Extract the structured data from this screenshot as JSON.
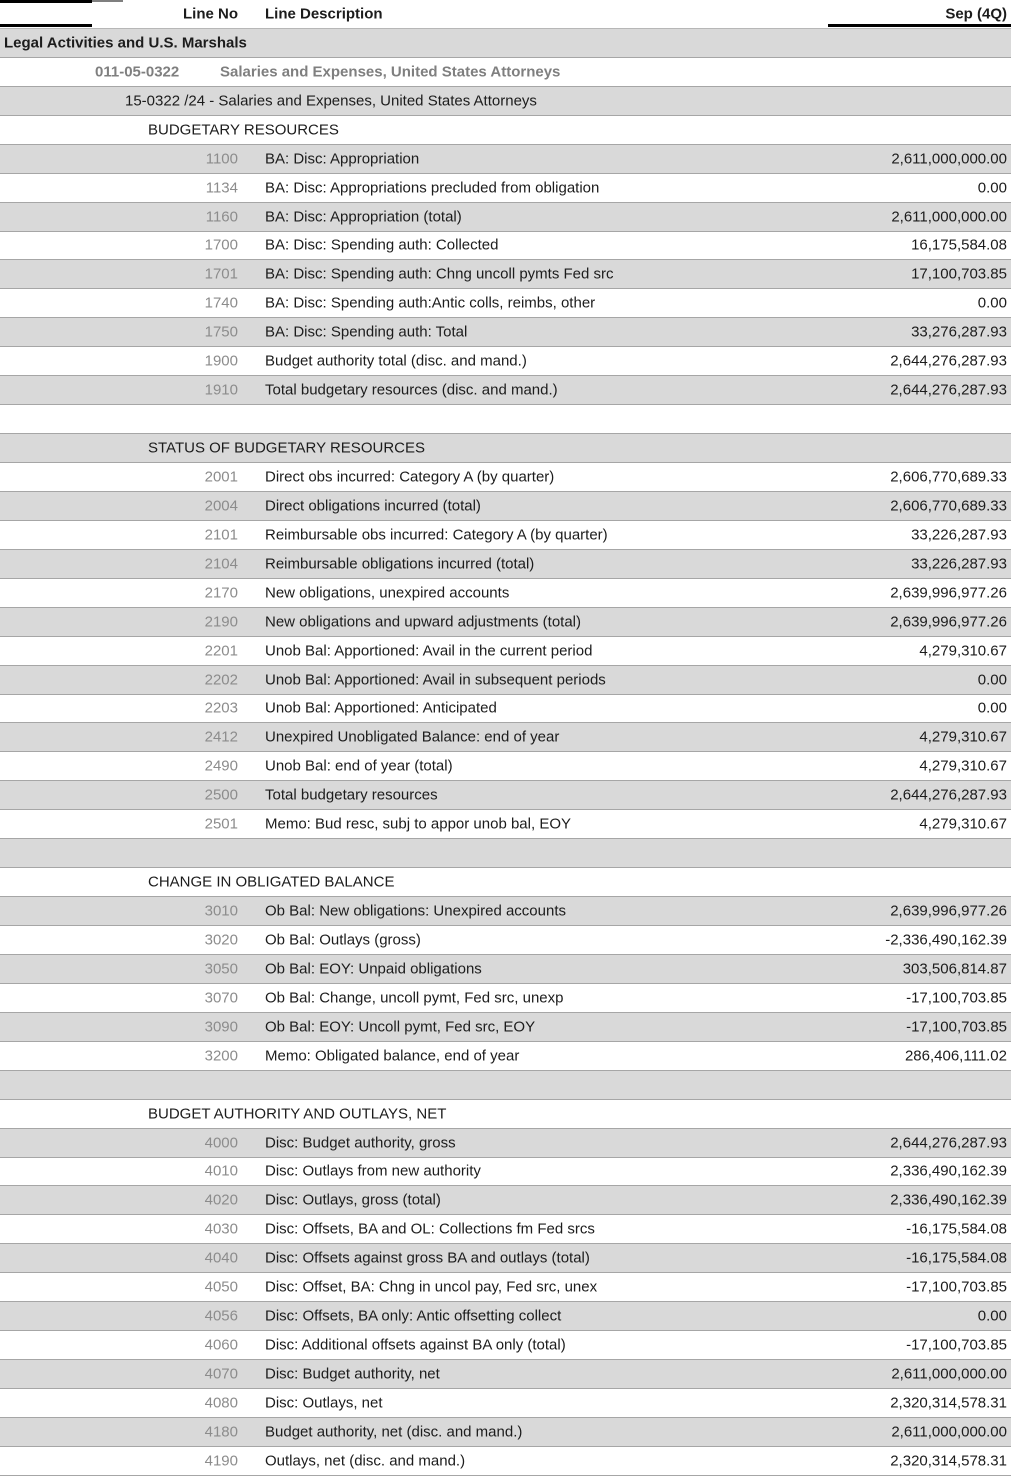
{
  "header": {
    "col_line_no": "Line No",
    "col_line_description": "Line Description",
    "col_period": "Sep (4Q)"
  },
  "hierarchy": {
    "bureau": "Legal Activities and U.S. Marshals",
    "account_number": "011-05-0322",
    "account_name": "Salaries and Expenses, United States Attorneys",
    "tafs_line": "15-0322 /24 - Salaries and Expenses, United States Attorneys"
  },
  "colors": {
    "shaded_row": "#d9d9d9",
    "row_border": "#a6a6a6",
    "muted_text": "#8c8c8c",
    "text": "#1c1c1c"
  },
  "rows": [
    {
      "type": "section",
      "label": "BUDGETARY RESOURCES",
      "shaded": false
    },
    {
      "type": "data",
      "line_no": "1100",
      "description": "BA: Disc: Appropriation",
      "amount": "2,611,000,000.00",
      "shaded": true
    },
    {
      "type": "data",
      "line_no": "1134",
      "description": "BA: Disc: Appropriations precluded from obligation",
      "amount": "0.00",
      "shaded": false
    },
    {
      "type": "data",
      "line_no": "1160",
      "description": "BA: Disc: Appropriation (total)",
      "amount": "2,611,000,000.00",
      "shaded": true
    },
    {
      "type": "data",
      "line_no": "1700",
      "description": "BA: Disc: Spending auth: Collected",
      "amount": "16,175,584.08",
      "shaded": false
    },
    {
      "type": "data",
      "line_no": "1701",
      "description": "BA: Disc: Spending auth: Chng uncoll pymts Fed src",
      "amount": "17,100,703.85",
      "shaded": true
    },
    {
      "type": "data",
      "line_no": "1740",
      "description": "BA: Disc: Spending auth:Antic colls, reimbs, other",
      "amount": "0.00",
      "shaded": false
    },
    {
      "type": "data",
      "line_no": "1750",
      "description": "BA: Disc: Spending auth: Total",
      "amount": "33,276,287.93",
      "shaded": true
    },
    {
      "type": "data",
      "line_no": "1900",
      "description": "Budget authority total (disc. and mand.)",
      "amount": "2,644,276,287.93",
      "shaded": false
    },
    {
      "type": "data",
      "line_no": "1910",
      "description": "Total budgetary resources (disc. and mand.)",
      "amount": "2,644,276,287.93",
      "shaded": true
    },
    {
      "type": "blank",
      "shaded": false
    },
    {
      "type": "section",
      "label": "STATUS OF BUDGETARY RESOURCES",
      "shaded": true
    },
    {
      "type": "data",
      "line_no": "2001",
      "description": "Direct obs incurred: Category A (by quarter)",
      "amount": "2,606,770,689.33",
      "shaded": false
    },
    {
      "type": "data",
      "line_no": "2004",
      "description": "Direct obligations incurred (total)",
      "amount": "2,606,770,689.33",
      "shaded": true
    },
    {
      "type": "data",
      "line_no": "2101",
      "description": "Reimbursable obs incurred: Category A (by quarter)",
      "amount": "33,226,287.93",
      "shaded": false
    },
    {
      "type": "data",
      "line_no": "2104",
      "description": "Reimbursable obligations incurred (total)",
      "amount": "33,226,287.93",
      "shaded": true
    },
    {
      "type": "data",
      "line_no": "2170",
      "description": "New obligations, unexpired accounts",
      "amount": "2,639,996,977.26",
      "shaded": false
    },
    {
      "type": "data",
      "line_no": "2190",
      "description": "New obligations and upward adjustments (total)",
      "amount": "2,639,996,977.26",
      "shaded": true
    },
    {
      "type": "data",
      "line_no": "2201",
      "description": "Unob Bal: Apportioned: Avail in the current period",
      "amount": "4,279,310.67",
      "shaded": false
    },
    {
      "type": "data",
      "line_no": "2202",
      "description": "Unob Bal: Apportioned: Avail in subsequent periods",
      "amount": "0.00",
      "shaded": true
    },
    {
      "type": "data",
      "line_no": "2203",
      "description": "Unob Bal: Apportioned: Anticipated",
      "amount": "0.00",
      "shaded": false
    },
    {
      "type": "data",
      "line_no": "2412",
      "description": "Unexpired Unobligated Balance: end of year",
      "amount": "4,279,310.67",
      "shaded": true
    },
    {
      "type": "data",
      "line_no": "2490",
      "description": "Unob Bal: end of year (total)",
      "amount": "4,279,310.67",
      "shaded": false
    },
    {
      "type": "data",
      "line_no": "2500",
      "description": "Total budgetary resources",
      "amount": "2,644,276,287.93",
      "shaded": true
    },
    {
      "type": "data",
      "line_no": "2501",
      "description": "Memo: Bud resc, subj to appor unob bal, EOY",
      "amount": "4,279,310.67",
      "shaded": false
    },
    {
      "type": "blank",
      "shaded": true
    },
    {
      "type": "section",
      "label": "CHANGE IN OBLIGATED BALANCE",
      "shaded": false
    },
    {
      "type": "data",
      "line_no": "3010",
      "description": "Ob Bal: New obligations: Unexpired accounts",
      "amount": "2,639,996,977.26",
      "shaded": true
    },
    {
      "type": "data",
      "line_no": "3020",
      "description": "Ob Bal: Outlays (gross)",
      "amount": "-2,336,490,162.39",
      "shaded": false
    },
    {
      "type": "data",
      "line_no": "3050",
      "description": "Ob Bal: EOY: Unpaid obligations",
      "amount": "303,506,814.87",
      "shaded": true
    },
    {
      "type": "data",
      "line_no": "3070",
      "description": "Ob Bal: Change, uncoll pymt, Fed src, unexp",
      "amount": "-17,100,703.85",
      "shaded": false
    },
    {
      "type": "data",
      "line_no": "3090",
      "description": "Ob Bal: EOY: Uncoll pymt, Fed src, EOY",
      "amount": "-17,100,703.85",
      "shaded": true
    },
    {
      "type": "data",
      "line_no": "3200",
      "description": "Memo: Obligated balance, end of year",
      "amount": "286,406,111.02",
      "shaded": false
    },
    {
      "type": "blank",
      "shaded": true
    },
    {
      "type": "section",
      "label": "BUDGET AUTHORITY AND OUTLAYS, NET",
      "shaded": false
    },
    {
      "type": "data",
      "line_no": "4000",
      "description": "Disc: Budget authority, gross",
      "amount": "2,644,276,287.93",
      "shaded": true
    },
    {
      "type": "data",
      "line_no": "4010",
      "description": "Disc: Outlays from new authority",
      "amount": "2,336,490,162.39",
      "shaded": false
    },
    {
      "type": "data",
      "line_no": "4020",
      "description": "Disc: Outlays, gross (total)",
      "amount": "2,336,490,162.39",
      "shaded": true
    },
    {
      "type": "data",
      "line_no": "4030",
      "description": "Disc: Offsets, BA and OL: Collections fm Fed srcs",
      "amount": "-16,175,584.08",
      "shaded": false
    },
    {
      "type": "data",
      "line_no": "4040",
      "description": "Disc: Offsets against gross BA and outlays (total)",
      "amount": "-16,175,584.08",
      "shaded": true
    },
    {
      "type": "data",
      "line_no": "4050",
      "description": "Disc: Offset, BA: Chng in uncol pay, Fed src, unex",
      "amount": "-17,100,703.85",
      "shaded": false
    },
    {
      "type": "data",
      "line_no": "4056",
      "description": "Disc: Offsets, BA only: Antic offsetting collect",
      "amount": "0.00",
      "shaded": true
    },
    {
      "type": "data",
      "line_no": "4060",
      "description": "Disc: Additional offsets against BA only (total)",
      "amount": "-17,100,703.85",
      "shaded": false
    },
    {
      "type": "data",
      "line_no": "4070",
      "description": "Disc: Budget authority, net",
      "amount": "2,611,000,000.00",
      "shaded": true
    },
    {
      "type": "data",
      "line_no": "4080",
      "description": "Disc: Outlays, net",
      "amount": "2,320,314,578.31",
      "shaded": false
    },
    {
      "type": "data",
      "line_no": "4180",
      "description": "Budget authority, net (disc. and mand.)",
      "amount": "2,611,000,000.00",
      "shaded": true
    },
    {
      "type": "data",
      "line_no": "4190",
      "description": "Outlays, net (disc. and mand.)",
      "amount": "2,320,314,578.31",
      "shaded": false
    }
  ]
}
